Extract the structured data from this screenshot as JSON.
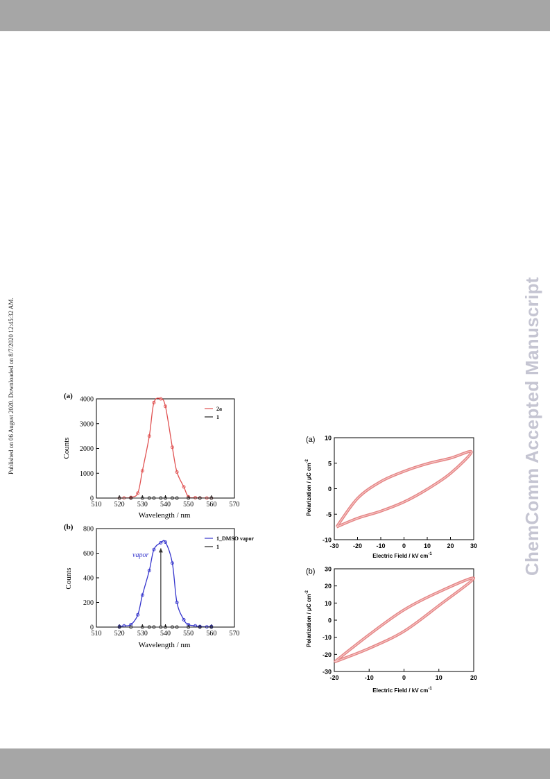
{
  "header_bar": {
    "color": "#a6a6a6"
  },
  "footer_bar": {
    "color": "#a6a6a6"
  },
  "side_note": "Published on 06 August 2020. Downloaded on 8/7/2020 12:45:32 AM.",
  "watermark": "ChemComm Accepted Manuscript",
  "figure_left": {
    "panel_a": {
      "label": "(a)",
      "ylabel": "Counts",
      "xlabel": "Wavelength / nm"
    },
    "panel_b": {
      "label": "(b)",
      "ylabel": "Counts",
      "xlabel": "Wavelength / nm",
      "annotation": "vapor"
    }
  },
  "figure_right": {
    "panel_a": {
      "label": "(a)",
      "ylabel": "Polarization / μC cm",
      "ylabel_sup": "-2",
      "xlabel": "Electric Field / kV cm",
      "xlabel_sup": "-1"
    },
    "panel_b": {
      "label": "(b)",
      "ylabel": "Polarization / μC cm",
      "ylabel_sup": "-2",
      "xlabel": "Electric Field / kV cm",
      "xlabel_sup": "-1"
    }
  },
  "chart_data": [
    {
      "type": "line",
      "panel": "left-a",
      "xlabel": "Wavelength / nm",
      "ylabel": "Counts",
      "xlim": [
        510,
        570
      ],
      "ylim": [
        0,
        4000
      ],
      "xticks": [
        510,
        520,
        530,
        540,
        550,
        560,
        570
      ],
      "yticks": [
        0,
        1000,
        2000,
        3000,
        4000
      ],
      "legend_position": "top-right",
      "series": [
        {
          "name": "2a",
          "color": "#e05050",
          "x": [
            520,
            522,
            525,
            528,
            530,
            533,
            535,
            538,
            540,
            543,
            545,
            548,
            550,
            553,
            555,
            558,
            560
          ],
          "y": [
            0,
            5,
            25,
            200,
            1100,
            2500,
            3850,
            4000,
            3700,
            2050,
            1050,
            450,
            50,
            15,
            5,
            2,
            0
          ]
        },
        {
          "name": "1",
          "color": "#222222",
          "x": [
            520,
            525,
            530,
            533,
            535,
            538,
            540,
            543,
            545,
            550,
            555,
            560
          ],
          "y": [
            0,
            0,
            0,
            0,
            0,
            0,
            0,
            0,
            0,
            0,
            0,
            0
          ]
        }
      ]
    },
    {
      "type": "line",
      "panel": "left-b",
      "xlabel": "Wavelength / nm",
      "ylabel": "Counts",
      "xlim": [
        510,
        570
      ],
      "ylim": [
        0,
        800
      ],
      "xticks": [
        510,
        520,
        530,
        540,
        550,
        560,
        570
      ],
      "yticks": [
        0,
        200,
        400,
        600,
        800
      ],
      "legend_position": "top-right",
      "annotation": "vapor",
      "series": [
        {
          "name": "1_DMSO vapor",
          "color": "#3333cc",
          "x": [
            520,
            522,
            525,
            528,
            530,
            533,
            535,
            538,
            540,
            543,
            545,
            548,
            550,
            553,
            555,
            558,
            560
          ],
          "y": [
            5,
            10,
            20,
            100,
            260,
            460,
            630,
            685,
            690,
            520,
            200,
            60,
            20,
            10,
            5,
            2,
            5
          ]
        },
        {
          "name": "1",
          "color": "#222222",
          "x": [
            520,
            525,
            530,
            533,
            535,
            538,
            540,
            543,
            545,
            550,
            555,
            560
          ],
          "y": [
            0,
            0,
            0,
            0,
            0,
            0,
            0,
            0,
            0,
            0,
            0,
            0
          ]
        }
      ]
    },
    {
      "type": "line",
      "panel": "right-a",
      "xlabel": "Electric Field / kV cm-1",
      "ylabel": "Polarization / μC cm-2",
      "xlim": [
        -30,
        30
      ],
      "ylim": [
        -10,
        10
      ],
      "xticks": [
        -30,
        -20,
        -10,
        0,
        10,
        20,
        30
      ],
      "yticks": [
        -10,
        -5,
        0,
        5,
        10
      ],
      "series": [
        {
          "name": "",
          "color": "#e07070",
          "x": [
            -29,
            -20,
            -10,
            0,
            10,
            20,
            29,
            20,
            10,
            0,
            -10,
            -20,
            -29
          ],
          "y": [
            -7.5,
            -1.9,
            1.4,
            3.4,
            4.9,
            6.0,
            7.2,
            3.0,
            -0.1,
            -2.6,
            -4.4,
            -5.8,
            -7.5
          ]
        }
      ]
    },
    {
      "type": "line",
      "panel": "right-b",
      "xlabel": "Electric Field / kV cm-1",
      "ylabel": "Polarization / μC cm-2",
      "xlim": [
        -20,
        20
      ],
      "ylim": [
        -30,
        30
      ],
      "xticks": [
        -20,
        -10,
        0,
        10,
        20
      ],
      "yticks": [
        -30,
        -20,
        -10,
        0,
        10,
        20,
        30
      ],
      "series": [
        {
          "name": "",
          "color": "#e07070",
          "x": [
            -20,
            -10,
            0,
            10,
            20,
            10,
            0,
            -10,
            -20
          ],
          "y": [
            -24.5,
            -8.5,
            6.0,
            16.5,
            24.5,
            8.5,
            -6.5,
            -16.5,
            -24.5
          ]
        }
      ]
    }
  ]
}
